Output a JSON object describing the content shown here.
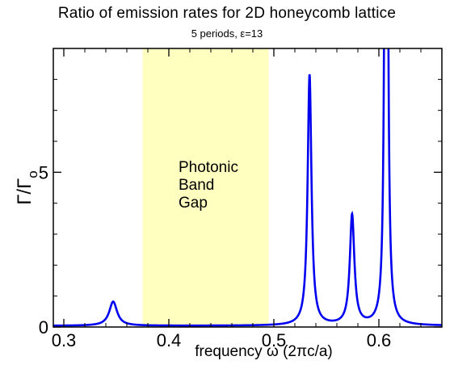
{
  "chart_data": {
    "type": "line",
    "title": "Ratio of emission rates for 2D honeycomb lattice",
    "subtitle": "5 periods, ε=13",
    "xlabel": "frequency ω (2πc/a)",
    "ylabel": "Γ/Γ",
    "ylabel_subscript": "o",
    "xlim": [
      0.29,
      0.66
    ],
    "ylim": [
      0,
      9.0
    ],
    "xticks": [
      0.3,
      0.4,
      0.5,
      0.6
    ],
    "xtick_labels": [
      "0.3",
      "0.4",
      "0.5",
      "0.6"
    ],
    "yticks": [
      0,
      5
    ],
    "ytick_labels": [
      "0",
      "5"
    ],
    "grid": false,
    "band_gap": {
      "x_start": 0.375,
      "x_end": 0.495,
      "label_lines": [
        "Photonic",
        "Band",
        "Gap"
      ],
      "color": "#ffffc0"
    },
    "series": [
      {
        "color": "#0000ee",
        "peaks": [
          {
            "x": 0.347,
            "height": 0.78,
            "width": 0.0045
          },
          {
            "x": 0.534,
            "height": 8.1,
            "width": 0.0022
          },
          {
            "x": 0.5745,
            "height": 3.55,
            "width": 0.0026
          },
          {
            "x": 0.607,
            "height": 60.0,
            "width": 0.0009
          }
        ],
        "baseline": 0.04
      }
    ]
  }
}
